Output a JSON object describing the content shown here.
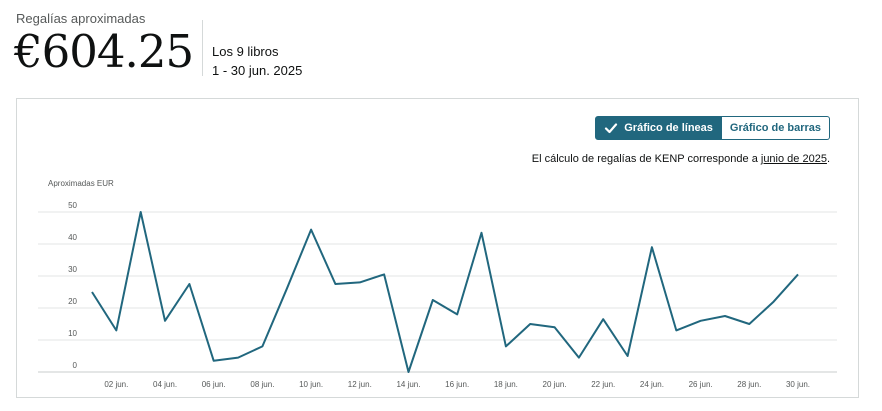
{
  "summary": {
    "label": "Regalías aproximadas",
    "amount": "€604.25",
    "books": "Los 9 libros",
    "range": "1 - 30 jun. 2025"
  },
  "toggle": {
    "line_label": "Gráfico de líneas",
    "bar_label": "Gráfico de barras",
    "active": "line"
  },
  "kenp_note": {
    "text": "El cálculo de regalías de KENP corresponde a ",
    "link": "junio de 2025",
    "suffix": "."
  },
  "colors": {
    "accent": "#21677e",
    "line": "#21677e",
    "grid": "#e3e6e6"
  },
  "chart_data": {
    "type": "line",
    "ylabel": "Aproximadas EUR",
    "xlabel": "",
    "ylim": [
      0,
      50
    ],
    "yticks": [
      0,
      10,
      20,
      30,
      40,
      50
    ],
    "x_tick_labels": [
      "02 jun.",
      "04 jun.",
      "06 jun.",
      "08 jun.",
      "10 jun.",
      "12 jun.",
      "14 jun.",
      "16 jun.",
      "18 jun.",
      "20 jun.",
      "22 jun.",
      "24 jun.",
      "26 jun.",
      "28 jun.",
      "30 jun."
    ],
    "x": [
      1,
      2,
      3,
      4,
      5,
      6,
      7,
      8,
      9,
      10,
      11,
      12,
      13,
      14,
      15,
      16,
      17,
      18,
      19,
      20,
      21,
      22,
      23,
      24,
      25,
      26,
      27,
      28,
      29,
      30
    ],
    "series": [
      {
        "values": [
          25,
          13,
          50,
          16,
          27.5,
          3.5,
          4.5,
          8,
          26,
          44.5,
          27.5,
          28,
          30.5,
          0,
          22.5,
          18,
          43.5,
          8,
          15,
          14,
          4.5,
          16.5,
          5,
          39,
          13,
          16,
          17.5,
          15,
          22,
          30.5
        ]
      }
    ],
    "grid": true
  }
}
